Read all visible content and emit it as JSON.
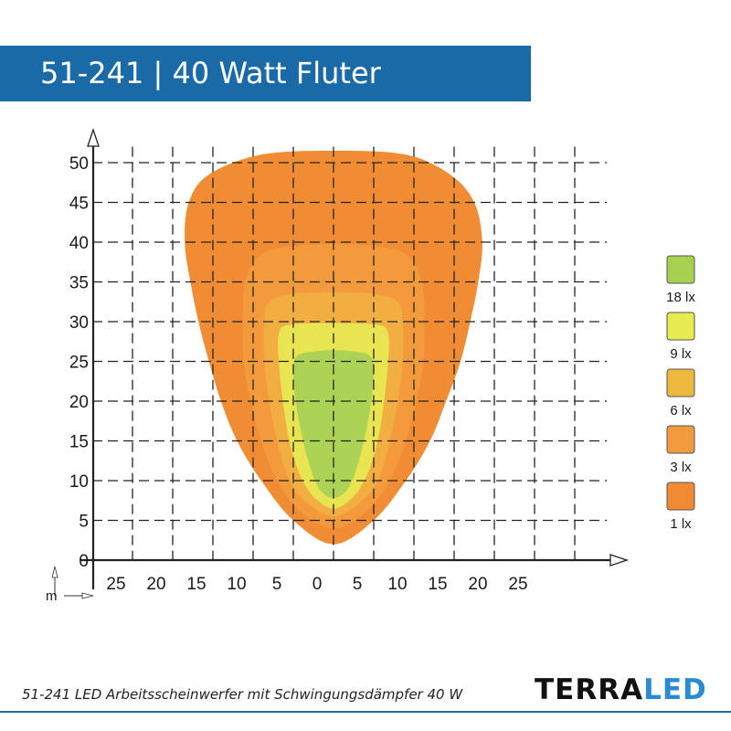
{
  "header": {
    "title": "51-241 | 40 Watt Fluter"
  },
  "caption": "51-241 LED Arbeitsscheinwerfer mit Schwingungsdämpfer 40 W",
  "brand": {
    "part1": "TERRA",
    "part2": "LED"
  },
  "chart_data": {
    "type": "area",
    "title": "",
    "xlabel": "",
    "ylabel": "",
    "axis_unit": "m",
    "x_ticks": [
      25,
      20,
      15,
      10,
      5,
      0,
      5,
      10,
      15,
      20,
      25
    ],
    "y_ticks": [
      0,
      5,
      10,
      15,
      20,
      25,
      30,
      35,
      40,
      45,
      50
    ],
    "xlim": [
      -30,
      30
    ],
    "ylim": [
      0,
      52
    ],
    "grid": true,
    "legend_position": "right",
    "series": [
      {
        "name": "1 lx",
        "color": "#f08c33",
        "outline": [
          [
            0,
            2
          ],
          [
            -5,
            5
          ],
          [
            -9,
            10
          ],
          [
            -12,
            15
          ],
          [
            -14,
            20
          ],
          [
            -15.5,
            25
          ],
          [
            -16.8,
            30
          ],
          [
            -17.8,
            35
          ],
          [
            -18.5,
            40
          ],
          [
            -18,
            45
          ],
          [
            -15.5,
            48.5
          ],
          [
            -9,
            51
          ],
          [
            0,
            51.5
          ],
          [
            9,
            51
          ],
          [
            14.5,
            48.5
          ],
          [
            17.5,
            45
          ],
          [
            18.5,
            40
          ],
          [
            18,
            35
          ],
          [
            17,
            30
          ],
          [
            15.8,
            25
          ],
          [
            14,
            20
          ],
          [
            12,
            15
          ],
          [
            9,
            10
          ],
          [
            5,
            5
          ]
        ]
      },
      {
        "name": "3 lx",
        "color": "#f39a3c",
        "outline": [
          [
            0,
            4
          ],
          [
            -4,
            6
          ],
          [
            -7,
            10
          ],
          [
            -9,
            15
          ],
          [
            -10.3,
            20
          ],
          [
            -11.2,
            25
          ],
          [
            -11.3,
            30
          ],
          [
            -11,
            35
          ],
          [
            -9,
            38.5
          ],
          [
            -5,
            39.5
          ],
          [
            0,
            39.8
          ],
          [
            5,
            39.5
          ],
          [
            9,
            38.5
          ],
          [
            11,
            35
          ],
          [
            11.3,
            30
          ],
          [
            11.2,
            25
          ],
          [
            10.3,
            20
          ],
          [
            9,
            15
          ],
          [
            7,
            10
          ],
          [
            4,
            6
          ]
        ]
      },
      {
        "name": "6 lx",
        "color": "#f2ae40",
        "outline": [
          [
            0,
            5.5
          ],
          [
            -3,
            7
          ],
          [
            -5.5,
            10
          ],
          [
            -7,
            15
          ],
          [
            -8,
            20
          ],
          [
            -8.6,
            25
          ],
          [
            -8.6,
            30
          ],
          [
            -8,
            32.5
          ],
          [
            -5,
            33.5
          ],
          [
            0,
            33.7
          ],
          [
            5,
            33.5
          ],
          [
            8,
            32.5
          ],
          [
            8.6,
            30
          ],
          [
            8.6,
            25
          ],
          [
            8,
            20
          ],
          [
            7,
            15
          ],
          [
            5.5,
            10
          ],
          [
            3,
            7
          ]
        ]
      },
      {
        "name": "9 lx",
        "color": "#e9e552",
        "outline": [
          [
            0,
            6.5
          ],
          [
            -2.5,
            8
          ],
          [
            -4.3,
            11
          ],
          [
            -5.5,
            15
          ],
          [
            -6.3,
            20
          ],
          [
            -6.8,
            25
          ],
          [
            -6.8,
            28.5
          ],
          [
            -5.5,
            29.6
          ],
          [
            0,
            29.8
          ],
          [
            5.5,
            29.6
          ],
          [
            6.8,
            28.5
          ],
          [
            6.8,
            25
          ],
          [
            6.3,
            20
          ],
          [
            5.5,
            15
          ],
          [
            4.3,
            11
          ],
          [
            2.5,
            8
          ]
        ]
      },
      {
        "name": "18 lx",
        "color": "#acd256",
        "outline": [
          [
            0,
            7.8
          ],
          [
            -1.8,
            9
          ],
          [
            -3,
            12
          ],
          [
            -4,
            16
          ],
          [
            -4.7,
            20
          ],
          [
            -5,
            24
          ],
          [
            -4.4,
            25.8
          ],
          [
            -2,
            26.3
          ],
          [
            0,
            26.4
          ],
          [
            2,
            26.3
          ],
          [
            4.4,
            25.8
          ],
          [
            5,
            24
          ],
          [
            4.7,
            20
          ],
          [
            4,
            16
          ],
          [
            3,
            12
          ],
          [
            1.8,
            9
          ]
        ]
      }
    ],
    "legend": [
      {
        "label": "18 lx",
        "color": "#a6d04e"
      },
      {
        "label": "9 lx",
        "color": "#e6ec4d"
      },
      {
        "label": "6 lx",
        "color": "#ecb93e"
      },
      {
        "label": "3 lx",
        "color": "#f29b3e"
      },
      {
        "label": "1 lx",
        "color": "#f08a33"
      }
    ]
  }
}
